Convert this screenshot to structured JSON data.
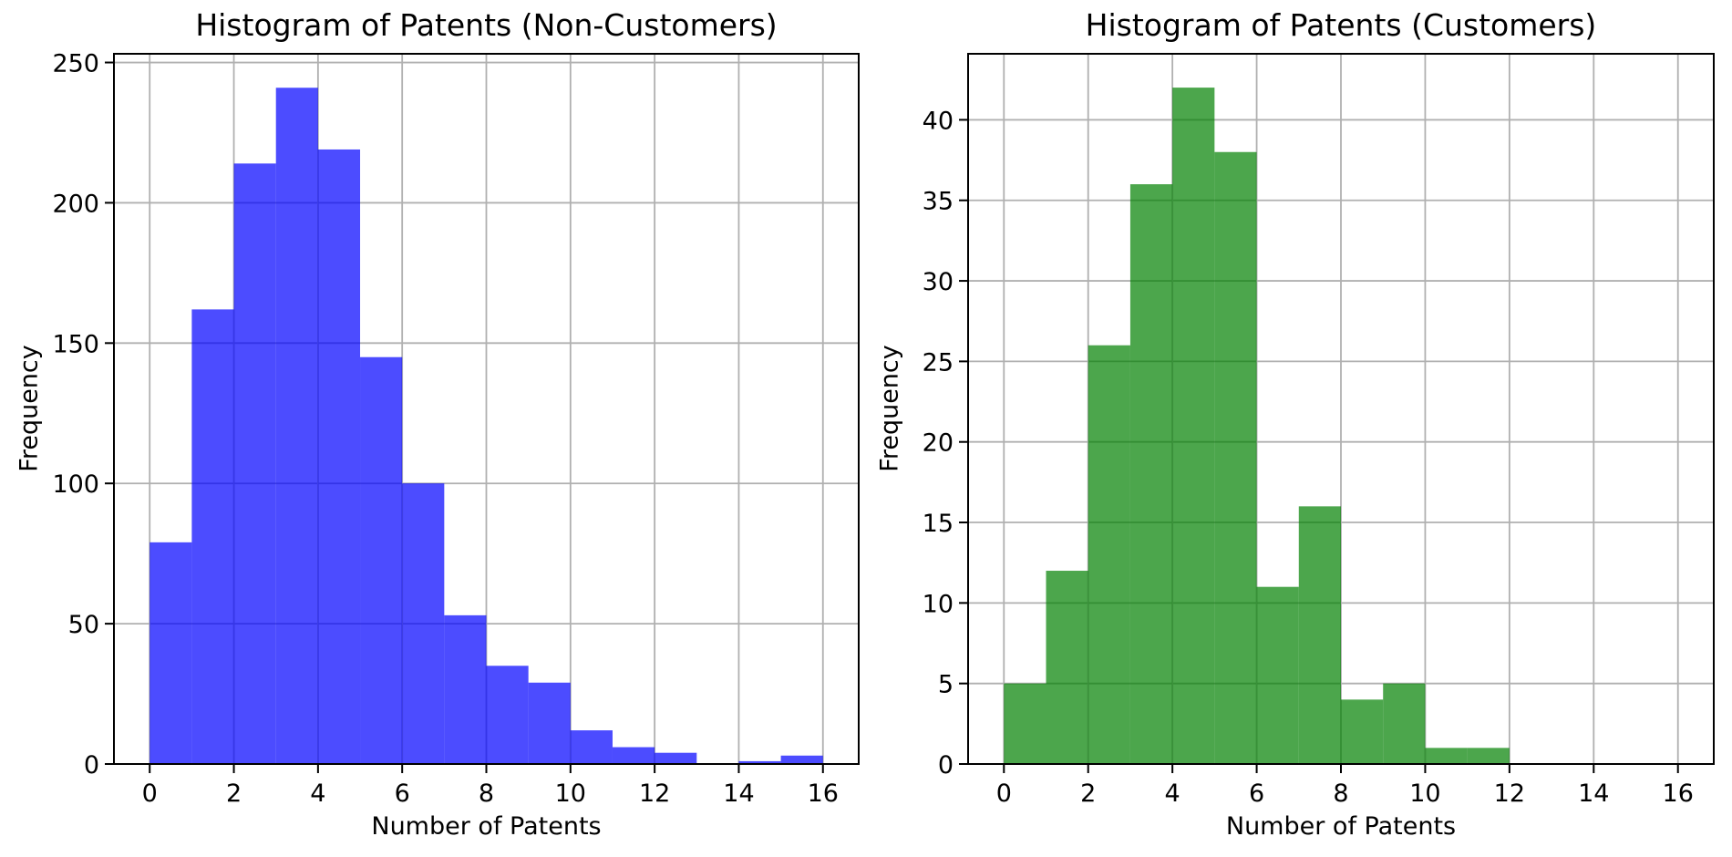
{
  "figure": {
    "background": "#ffffff",
    "grid_color": "#b0b0b0",
    "spine_color": "#000000",
    "text_color": "#000000"
  },
  "chart_data": [
    {
      "type": "bar",
      "subtype": "histogram",
      "title": "Histogram of Patents (Non-Customers)",
      "xlabel": "Number of Patents",
      "ylabel": "Frequency",
      "bar_color": "#0000ff",
      "bar_alpha": 0.7,
      "bin_edges": [
        0,
        1,
        2,
        3,
        4,
        5,
        6,
        7,
        8,
        9,
        10,
        11,
        12,
        13,
        14,
        15,
        16
      ],
      "counts": [
        79,
        162,
        214,
        241,
        219,
        145,
        100,
        53,
        35,
        29,
        12,
        6,
        4,
        0,
        1,
        3
      ],
      "xticks": [
        0,
        2,
        4,
        6,
        8,
        10,
        12,
        14,
        16
      ],
      "yticks": [
        0,
        50,
        100,
        150,
        200,
        250
      ],
      "xlim": [
        -0.85,
        16.85
      ],
      "ylim": [
        0,
        253.1
      ],
      "grid": true,
      "legend": null
    },
    {
      "type": "bar",
      "subtype": "histogram",
      "title": "Histogram of Patents (Customers)",
      "xlabel": "Number of Patents",
      "ylabel": "Frequency",
      "bar_color": "#008000",
      "bar_alpha": 0.7,
      "bin_edges": [
        0,
        1,
        2,
        3,
        4,
        5,
        6,
        7,
        8,
        9,
        10,
        11,
        12,
        13,
        14,
        15,
        16
      ],
      "counts": [
        5,
        12,
        26,
        36,
        42,
        38,
        11,
        16,
        4,
        5,
        1,
        1,
        0,
        0,
        0,
        0
      ],
      "xticks": [
        0,
        2,
        4,
        6,
        8,
        10,
        12,
        14,
        16
      ],
      "yticks": [
        0,
        5,
        10,
        15,
        20,
        25,
        30,
        35,
        40
      ],
      "xlim": [
        -0.85,
        16.85
      ],
      "ylim": [
        0,
        44.1
      ],
      "grid": true,
      "legend": null
    }
  ]
}
